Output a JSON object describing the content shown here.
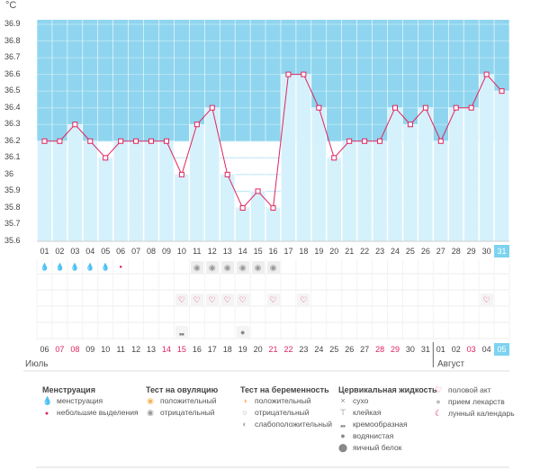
{
  "unit_label": "°C",
  "y_ticks": [
    "36.9",
    "36.8",
    "36.7",
    "36.6",
    "36.5",
    "36.4",
    "36.3",
    "36.2",
    "36.1",
    "36",
    "35.9",
    "35.8",
    "35.7",
    "35.6"
  ],
  "cycle_days": [
    "01",
    "02",
    "03",
    "04",
    "05",
    "06",
    "07",
    "08",
    "09",
    "10",
    "11",
    "12",
    "13",
    "14",
    "15",
    "16",
    "17",
    "18",
    "19",
    "20",
    "21",
    "22",
    "23",
    "24",
    "25",
    "26",
    "27",
    "28",
    "29",
    "30",
    "31"
  ],
  "calendar_dates": [
    "06",
    "07",
    "08",
    "09",
    "10",
    "11",
    "12",
    "13",
    "14",
    "15",
    "16",
    "17",
    "18",
    "19",
    "20",
    "21",
    "22",
    "23",
    "24",
    "25",
    "26",
    "27",
    "28",
    "29",
    "30",
    "31",
    "01",
    "02",
    "03",
    "04",
    "05"
  ],
  "red_date_indices": [
    1,
    2,
    8,
    9,
    15,
    16,
    22,
    23,
    28
  ],
  "months": {
    "first": "Июль",
    "second": "Август"
  },
  "colors": {
    "accent": "#7dd3ef",
    "line": "#e0245e",
    "fill": "#cdeefb"
  },
  "chart_data": {
    "type": "area",
    "ylabel": "°C",
    "ylim": [
      35.6,
      36.9
    ],
    "x": [
      "01",
      "02",
      "03",
      "04",
      "05",
      "06",
      "07",
      "08",
      "09",
      "10",
      "11",
      "12",
      "13",
      "14",
      "15",
      "16",
      "17",
      "18",
      "19",
      "20",
      "21",
      "22",
      "23",
      "24",
      "25",
      "26",
      "27",
      "28",
      "29",
      "30",
      "31"
    ],
    "values": [
      36.2,
      36.2,
      36.3,
      36.2,
      36.1,
      36.2,
      36.2,
      36.2,
      36.2,
      36.0,
      36.3,
      36.4,
      36.0,
      35.8,
      35.9,
      35.8,
      36.6,
      36.6,
      36.4,
      36.1,
      36.2,
      36.2,
      36.2,
      36.4,
      36.3,
      36.4,
      36.2,
      36.4,
      36.4,
      36.6,
      36.5
    ],
    "coverline": 36.2,
    "grid": true
  },
  "rows": {
    "menstruation": {
      "heavy": [
        0,
        1,
        2,
        3,
        4
      ],
      "light": [
        5
      ]
    },
    "ovulation_test": {
      "negative": [
        10,
        11,
        12,
        13,
        14,
        15
      ]
    },
    "intercourse": [
      9,
      10,
      11,
      12,
      13,
      15,
      17,
      29
    ],
    "cervical": {
      "creamy": [
        9
      ],
      "watery": [
        13
      ]
    }
  },
  "legend": {
    "col1": {
      "title": "Менструация",
      "items": [
        {
          "icon": "drop-big",
          "label": "менструация"
        },
        {
          "icon": "drop-small",
          "label": "небольшие выделения"
        }
      ]
    },
    "col2": {
      "title": "Тест на овуляцию",
      "items": [
        {
          "icon": "positive",
          "label": "положительный"
        },
        {
          "icon": "negative",
          "label": "отрицательный"
        }
      ]
    },
    "col3": {
      "title": "Тест на беременность",
      "items": [
        {
          "icon": "positive",
          "label": "положительный"
        },
        {
          "icon": "negative",
          "label": "отрицательный"
        },
        {
          "icon": "weak",
          "label": "слабоположительный"
        }
      ]
    },
    "col4": {
      "title": "Цервикальная жидкость",
      "items": [
        {
          "icon": "x",
          "label": "сухо"
        },
        {
          "icon": "sticky",
          "label": "клейкая"
        },
        {
          "icon": "creamy",
          "label": "кремообразная"
        },
        {
          "icon": "watery",
          "label": "водянистая"
        },
        {
          "icon": "eggwhite",
          "label": "яичный белок"
        }
      ]
    },
    "col5": {
      "items": [
        {
          "icon": "heart",
          "label": "половой акт"
        },
        {
          "icon": "pill",
          "label": "прием лекарств"
        },
        {
          "icon": "moon",
          "label": "лунный календарь"
        }
      ]
    }
  }
}
